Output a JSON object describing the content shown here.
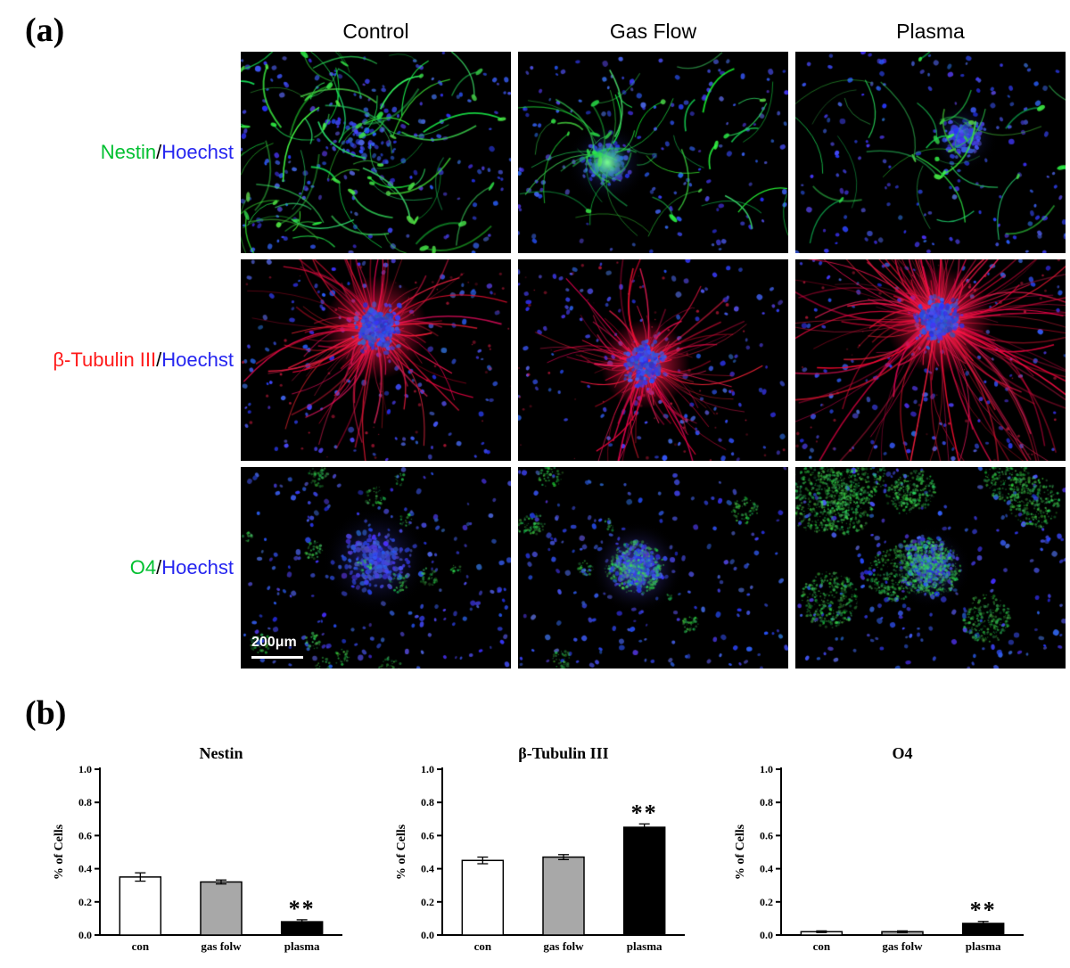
{
  "panels": {
    "a_label": "(a)",
    "b_label": "(b)"
  },
  "microscopy": {
    "columns": [
      "Control",
      "Gas Flow",
      "Plasma"
    ],
    "rows": [
      {
        "marker": "Nestin",
        "marker_color": "#00c030",
        "separator": "/",
        "counterstain": "Hoechst",
        "counterstain_color": "#2525f0"
      },
      {
        "marker": "β-Tubulin III",
        "marker_color": "#ff1a1a",
        "separator": "/",
        "counterstain": "Hoechst",
        "counterstain_color": "#2525f0"
      },
      {
        "marker": "O4",
        "marker_color": "#00c030",
        "separator": "/",
        "counterstain": "Hoechst",
        "counterstain_color": "#2525f0"
      }
    ],
    "scale_bar_label": "200μm",
    "stain_colors": {
      "nestin": "#00e060",
      "beta_tubulin_iii": "#ff1040",
      "o4": "#00d060",
      "hoechst": "#3040e0"
    }
  },
  "chart_data": [
    {
      "type": "bar",
      "title": "Nestin",
      "categories": [
        "con",
        "gas folw",
        "plasma"
      ],
      "values": [
        0.35,
        0.32,
        0.08
      ],
      "errors": [
        0.025,
        0.012,
        0.012
      ],
      "bar_colors": [
        "#ffffff",
        "#a8a8a8",
        "#000000"
      ],
      "ylabel": "% of Cells",
      "ylim": [
        0,
        1.0
      ],
      "yticks": [
        0.0,
        0.2,
        0.4,
        0.6,
        0.8,
        1.0
      ],
      "significance": {
        "index": 2,
        "category": "plasma",
        "label": "**"
      }
    },
    {
      "type": "bar",
      "title": "β-Tubulin III",
      "categories": [
        "con",
        "gas folw",
        "plasma"
      ],
      "values": [
        0.45,
        0.47,
        0.65
      ],
      "errors": [
        0.02,
        0.015,
        0.02
      ],
      "bar_colors": [
        "#ffffff",
        "#a8a8a8",
        "#000000"
      ],
      "ylabel": "% of Cells",
      "ylim": [
        0,
        1.0
      ],
      "yticks": [
        0.0,
        0.2,
        0.4,
        0.6,
        0.8,
        1.0
      ],
      "significance": {
        "index": 2,
        "category": "plasma",
        "label": "**"
      }
    },
    {
      "type": "bar",
      "title": "O4",
      "categories": [
        "con",
        "gas folw",
        "plasma"
      ],
      "values": [
        0.02,
        0.02,
        0.07
      ],
      "errors": [
        0.005,
        0.005,
        0.012
      ],
      "bar_colors": [
        "#ffffff",
        "#a8a8a8",
        "#000000"
      ],
      "ylabel": "% of Cells",
      "ylim": [
        0,
        1.0
      ],
      "yticks": [
        0.0,
        0.2,
        0.4,
        0.6,
        0.8,
        1.0
      ],
      "significance": {
        "index": 2,
        "category": "plasma",
        "label": "**"
      }
    }
  ]
}
